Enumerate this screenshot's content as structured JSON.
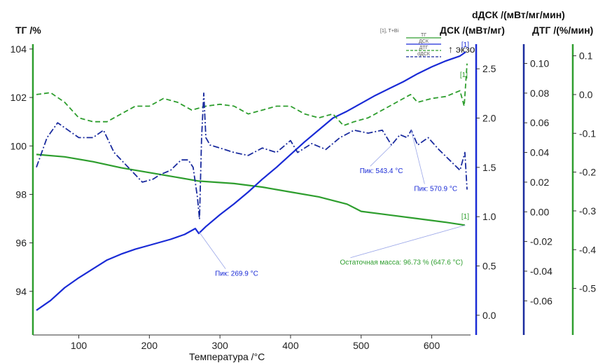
{
  "chart_data": {
    "type": "line",
    "xlabel": "Температура /°C",
    "x_ticks": [
      100,
      200,
      300,
      400,
      500,
      600
    ],
    "xlim": [
      35,
      655
    ],
    "axes": {
      "tg": {
        "title": "ТГ /%",
        "ylim": [
          92.2,
          104.2
        ],
        "ticks": [
          94,
          96,
          98,
          100,
          102,
          104
        ],
        "color": "#2e9e2e"
      },
      "dsc": {
        "title": "ДСК /(мВт/мг)",
        "note": "↑ экзо",
        "ylim": [
          -0.2,
          2.75
        ],
        "ticks": [
          0.0,
          0.5,
          1.0,
          1.5,
          2.0,
          2.5
        ],
        "color": "#1a2bd6"
      },
      "ddsc": {
        "title": "dДСК /(мВт/мг/мин)",
        "ylim": [
          -0.083,
          0.113
        ],
        "ticks": [
          -0.06,
          -0.04,
          -0.02,
          0.0,
          0.02,
          0.04,
          0.06,
          0.08,
          0.1
        ],
        "color": "#1a2b9e"
      },
      "dtg": {
        "title": "ДТГ /(%/мин)",
        "ylim": [
          -0.62,
          0.13
        ],
        "ticks": [
          -0.5,
          -0.4,
          -0.3,
          -0.2,
          -0.1,
          0.0,
          0.1
        ],
        "color": "#2e9e2e"
      }
    },
    "legend": {
      "title": "[1], T+Bi",
      "position": "top-right",
      "entries": [
        {
          "label": "ТГ",
          "color": "#2e9e2e",
          "dash": "solid"
        },
        {
          "label": "ДСК",
          "color": "#1a2bd6",
          "dash": "solid"
        },
        {
          "label": "ДТГ",
          "color": "#2e9e2e",
          "dash": "dash"
        },
        {
          "label": "dДСК",
          "color": "#1a2b9e",
          "dash": "dash"
        }
      ]
    },
    "series": [
      {
        "name": "ТГ",
        "axis": "tg",
        "color": "#2e9e2e",
        "width": 2.2,
        "dash": "",
        "points": [
          [
            40,
            99.65
          ],
          [
            80,
            99.55
          ],
          [
            120,
            99.35
          ],
          [
            160,
            99.1
          ],
          [
            200,
            98.9
          ],
          [
            240,
            98.7
          ],
          [
            270,
            98.55
          ],
          [
            320,
            98.45
          ],
          [
            360,
            98.3
          ],
          [
            400,
            98.1
          ],
          [
            440,
            97.9
          ],
          [
            480,
            97.6
          ],
          [
            500,
            97.3
          ],
          [
            540,
            97.15
          ],
          [
            580,
            97.0
          ],
          [
            620,
            96.85
          ],
          [
            647,
            96.73
          ]
        ]
      },
      {
        "name": "ДСК",
        "axis": "dsc",
        "color": "#1a2bd6",
        "width": 2.2,
        "dash": "",
        "points": [
          [
            40,
            0.05
          ],
          [
            60,
            0.15
          ],
          [
            80,
            0.28
          ],
          [
            100,
            0.38
          ],
          [
            120,
            0.47
          ],
          [
            140,
            0.56
          ],
          [
            160,
            0.62
          ],
          [
            180,
            0.67
          ],
          [
            200,
            0.71
          ],
          [
            230,
            0.77
          ],
          [
            250,
            0.82
          ],
          [
            265,
            0.88
          ],
          [
            270,
            0.83
          ],
          [
            280,
            0.9
          ],
          [
            300,
            1.02
          ],
          [
            320,
            1.13
          ],
          [
            340,
            1.25
          ],
          [
            360,
            1.38
          ],
          [
            380,
            1.5
          ],
          [
            400,
            1.63
          ],
          [
            420,
            1.76
          ],
          [
            440,
            1.88
          ],
          [
            460,
            2.0
          ],
          [
            480,
            2.07
          ],
          [
            500,
            2.15
          ],
          [
            520,
            2.23
          ],
          [
            540,
            2.3
          ],
          [
            560,
            2.37
          ],
          [
            580,
            2.45
          ],
          [
            600,
            2.52
          ],
          [
            620,
            2.58
          ],
          [
            640,
            2.63
          ],
          [
            648,
            2.67
          ]
        ]
      },
      {
        "name": "ДТГ",
        "axis": "dtg",
        "color": "#2e9e2e",
        "width": 1.8,
        "dash": "7 4",
        "points": [
          [
            40,
            0.0
          ],
          [
            60,
            0.005
          ],
          [
            80,
            -0.02
          ],
          [
            100,
            -0.06
          ],
          [
            120,
            -0.07
          ],
          [
            140,
            -0.07
          ],
          [
            160,
            -0.05
          ],
          [
            180,
            -0.03
          ],
          [
            200,
            -0.03
          ],
          [
            220,
            -0.01
          ],
          [
            240,
            -0.02
          ],
          [
            260,
            -0.04
          ],
          [
            280,
            -0.03
          ],
          [
            300,
            -0.025
          ],
          [
            320,
            -0.03
          ],
          [
            340,
            -0.05
          ],
          [
            360,
            -0.04
          ],
          [
            380,
            -0.03
          ],
          [
            400,
            -0.03
          ],
          [
            420,
            -0.05
          ],
          [
            440,
            -0.06
          ],
          [
            460,
            -0.05
          ],
          [
            475,
            -0.08
          ],
          [
            490,
            -0.07
          ],
          [
            510,
            -0.06
          ],
          [
            530,
            -0.04
          ],
          [
            550,
            -0.02
          ],
          [
            570,
            0.0
          ],
          [
            580,
            -0.02
          ],
          [
            600,
            -0.01
          ],
          [
            620,
            -0.005
          ],
          [
            640,
            0.01
          ],
          [
            646,
            -0.03
          ],
          [
            650,
            0.08
          ]
        ]
      },
      {
        "name": "dДСК",
        "axis": "ddsc",
        "color": "#1a2b9e",
        "width": 1.8,
        "dash": "9 3 2 3",
        "points": [
          [
            40,
            0.03
          ],
          [
            55,
            0.05
          ],
          [
            70,
            0.06
          ],
          [
            85,
            0.055
          ],
          [
            100,
            0.05
          ],
          [
            120,
            0.05
          ],
          [
            135,
            0.055
          ],
          [
            150,
            0.04
          ],
          [
            170,
            0.03
          ],
          [
            190,
            0.02
          ],
          [
            205,
            0.022
          ],
          [
            215,
            0.025
          ],
          [
            230,
            0.028
          ],
          [
            245,
            0.035
          ],
          [
            255,
            0.035
          ],
          [
            262,
            0.03
          ],
          [
            268,
            0.01
          ],
          [
            271,
            -0.005
          ],
          [
            274,
            0.05
          ],
          [
            277,
            0.08
          ],
          [
            280,
            0.05
          ],
          [
            286,
            0.045
          ],
          [
            300,
            0.043
          ],
          [
            320,
            0.04
          ],
          [
            340,
            0.038
          ],
          [
            360,
            0.043
          ],
          [
            380,
            0.04
          ],
          [
            400,
            0.048
          ],
          [
            410,
            0.04
          ],
          [
            430,
            0.046
          ],
          [
            450,
            0.042
          ],
          [
            470,
            0.05
          ],
          [
            490,
            0.055
          ],
          [
            510,
            0.053
          ],
          [
            530,
            0.055
          ],
          [
            543,
            0.045
          ],
          [
            555,
            0.052
          ],
          [
            565,
            0.05
          ],
          [
            571,
            0.055
          ],
          [
            580,
            0.045
          ],
          [
            595,
            0.05
          ],
          [
            610,
            0.042
          ],
          [
            625,
            0.035
          ],
          [
            640,
            0.028
          ],
          [
            647,
            0.04
          ],
          [
            650,
            0.015
          ]
        ]
      }
    ],
    "annotations": [
      {
        "id": "peak-dsc-269",
        "text": "Пик: 269.9 °C",
        "color": "#1a2bd6",
        "axis": "dsc",
        "at": [
          269.9,
          0.85
        ],
        "label_at": [
          293,
          0.4
        ]
      },
      {
        "id": "peak-ddsc-543",
        "text": "Пик: 543.4 °C",
        "color": "#1a2bd6",
        "axis": "ddsc",
        "at": [
          543.4,
          0.045
        ],
        "label_at": [
          498,
          0.026
        ]
      },
      {
        "id": "peak-ddsc-571",
        "text": "Пик: 570.9 °C",
        "color": "#1a2bd6",
        "axis": "ddsc",
        "at": [
          570.9,
          0.055
        ],
        "label_at": [
          575,
          0.014
        ]
      },
      {
        "id": "residual-mass",
        "text": "Остаточная масса: 96.73 % (647.6 °C)",
        "color": "#2e9e2e",
        "axis": "tg",
        "at": [
          647.6,
          96.73
        ],
        "label_at": [
          470,
          95.1
        ]
      }
    ],
    "markers": [
      {
        "text": "[1]",
        "axis": "dsc",
        "at": [
          642,
          2.72
        ],
        "color": "#1a2bd6"
      },
      {
        "text": "[1]",
        "axis": "dtg",
        "at": [
          640,
          0.045
        ],
        "color": "#2e9e2e"
      },
      {
        "text": "[1]",
        "axis": "tg",
        "at": [
          642,
          97.0
        ],
        "color": "#2e9e2e"
      }
    ]
  }
}
